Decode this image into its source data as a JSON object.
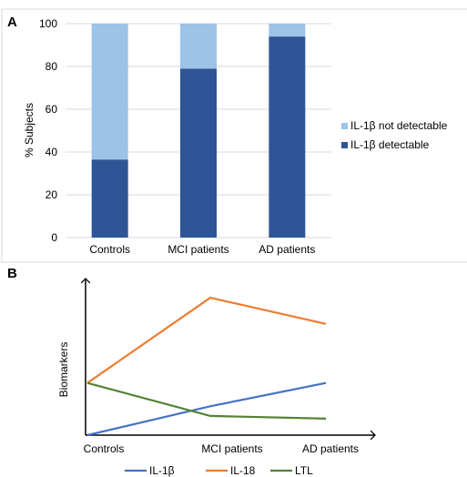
{
  "chart_data": [
    {
      "panel_label": "A",
      "type": "bar",
      "stacked": true,
      "categories": [
        "Controls",
        "MCI patients",
        "AD patients"
      ],
      "series": [
        {
          "name": "IL-1β detectable",
          "values": [
            36.5,
            79,
            94
          ],
          "color": "#2f5597"
        },
        {
          "name": "IL-1β not detectable",
          "values": [
            63.5,
            21,
            6
          ],
          "color": "#9dc3e6"
        }
      ],
      "ylabel": "% Subjects",
      "ylim": [
        0,
        100
      ],
      "yticks": [
        "0",
        "20",
        "40",
        "60",
        "80",
        "100"
      ],
      "grid": true,
      "legend_position": "right",
      "legend_order": [
        "IL-1β not detectable",
        "IL-1β detectable"
      ]
    },
    {
      "panel_label": "B",
      "type": "line",
      "categories": [
        "Controls",
        "MCI patients",
        "AD patients"
      ],
      "series": [
        {
          "name": "IL-1β",
          "values": [
            0,
            0.21,
            0.38
          ],
          "color": "#4472c4"
        },
        {
          "name": "IL-18",
          "values": [
            0.38,
            1.0,
            0.81
          ],
          "color": "#ed7d31"
        },
        {
          "name": "LTL",
          "values": [
            0.38,
            0.14,
            0.12
          ],
          "color": "#548235"
        }
      ],
      "ylabel": "Biomarkers",
      "ylim": [
        0,
        1.1
      ],
      "legend_position": "bottom",
      "grid": false
    }
  ]
}
